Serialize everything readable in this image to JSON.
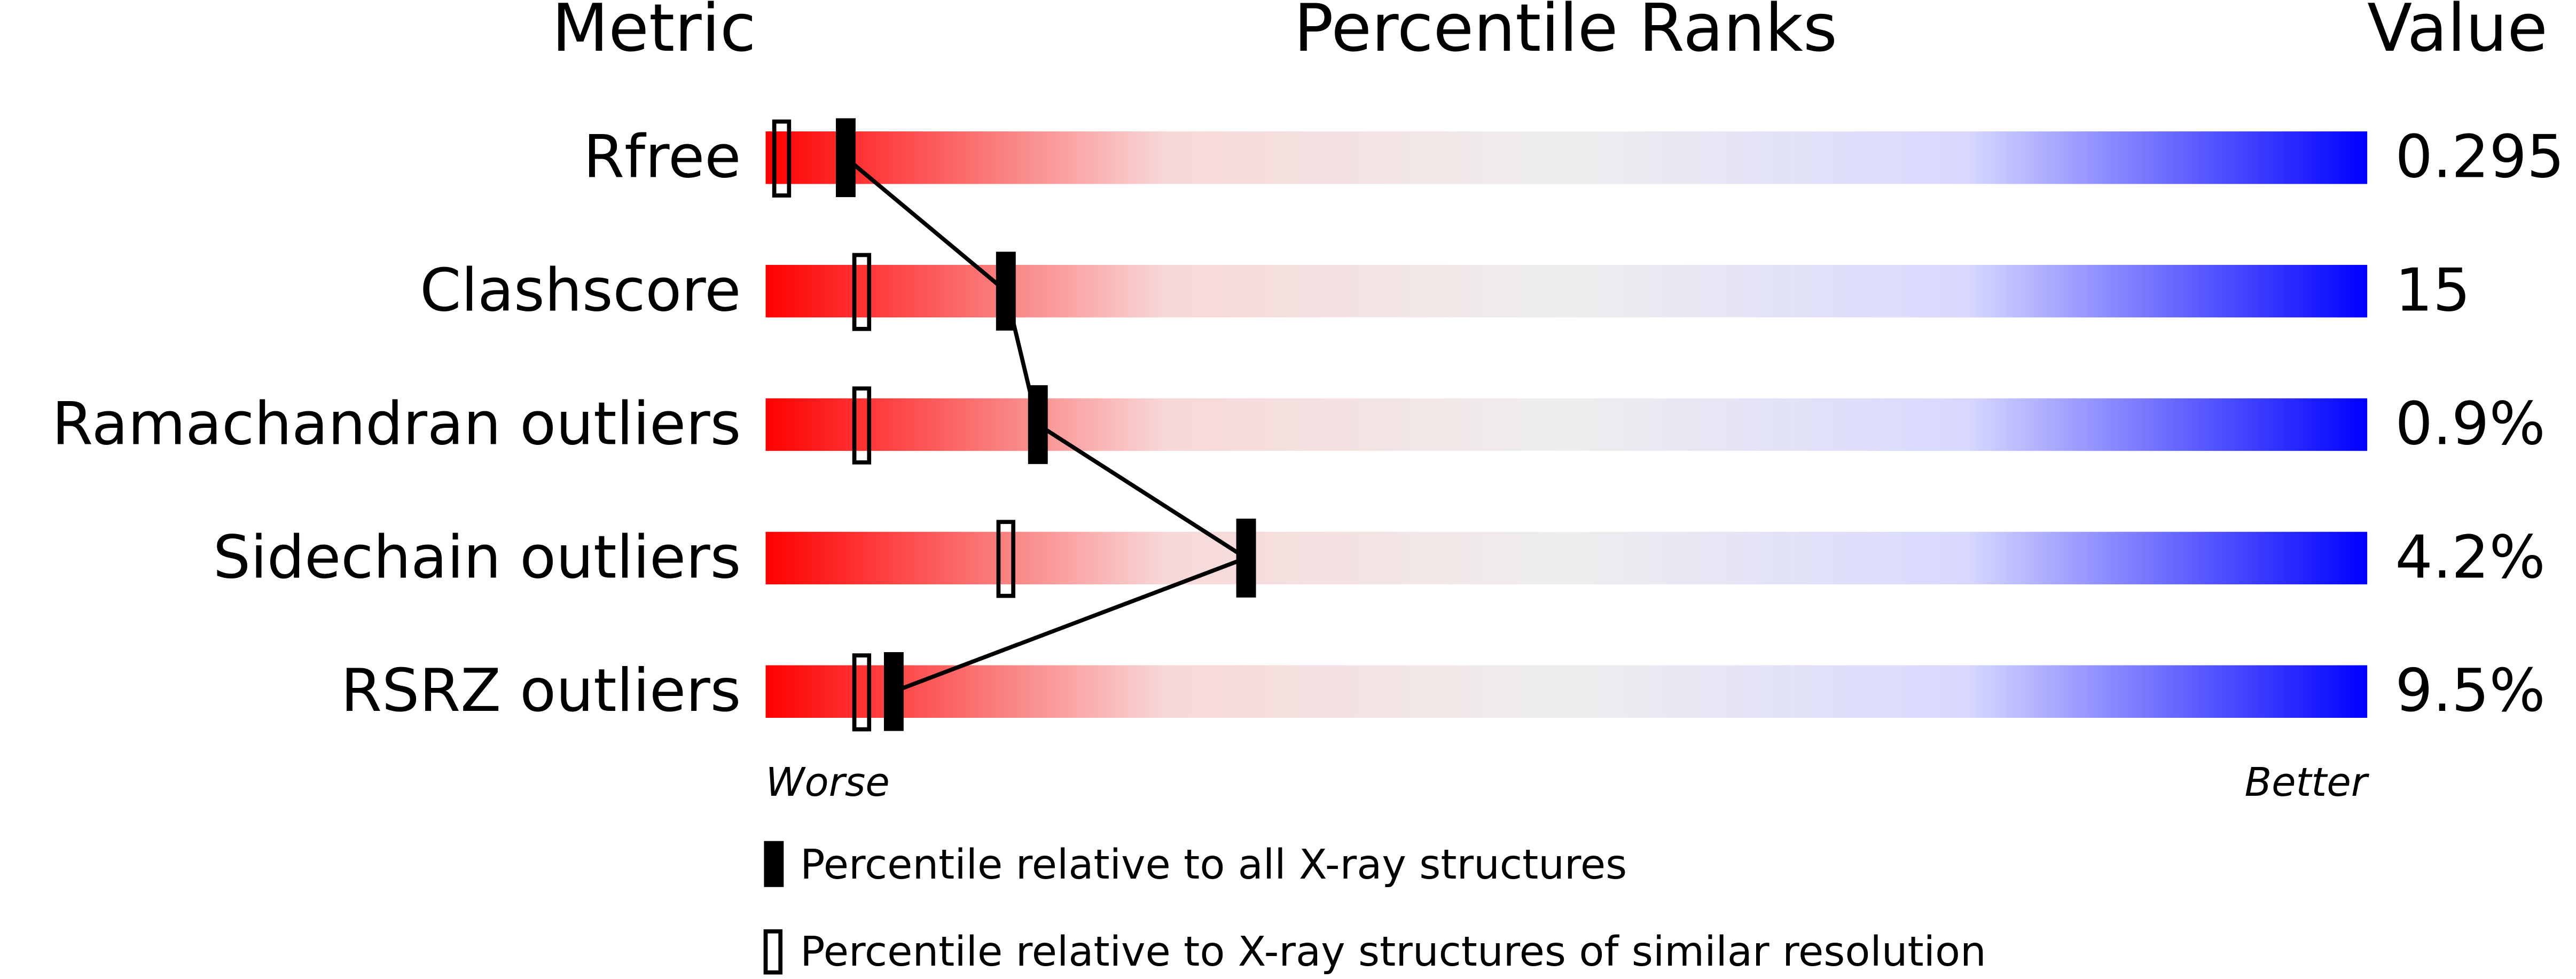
{
  "chart_data": {
    "type": "percentile-slider",
    "headers": {
      "metric": "Metric",
      "ranks": "Percentile Ranks",
      "value": "Value"
    },
    "categories": [
      "Rfree",
      "Clashscore",
      "Ramachandran outliers",
      "Sidechain outliers",
      "RSRZ outliers"
    ],
    "series": [
      {
        "name": "Percentile relative to all X-ray structures",
        "style": "filled",
        "color": "#000000",
        "values": [
          5,
          15,
          17,
          30,
          8
        ]
      },
      {
        "name": "Percentile relative to X-ray structures of similar resolution",
        "style": "open",
        "color": "#000000",
        "values": [
          1,
          6,
          6,
          15,
          6
        ]
      }
    ],
    "metric_values": [
      "0.295",
      "15",
      "0.9%",
      "4.2%",
      "9.5%"
    ],
    "xlim": [
      0,
      100
    ],
    "axis_labels": {
      "low": "Worse",
      "high": "Better"
    },
    "gradient": [
      "#ff0000",
      "#f8d8d8",
      "#eeeeee",
      "#d8d8ff",
      "#0000ff"
    ]
  }
}
